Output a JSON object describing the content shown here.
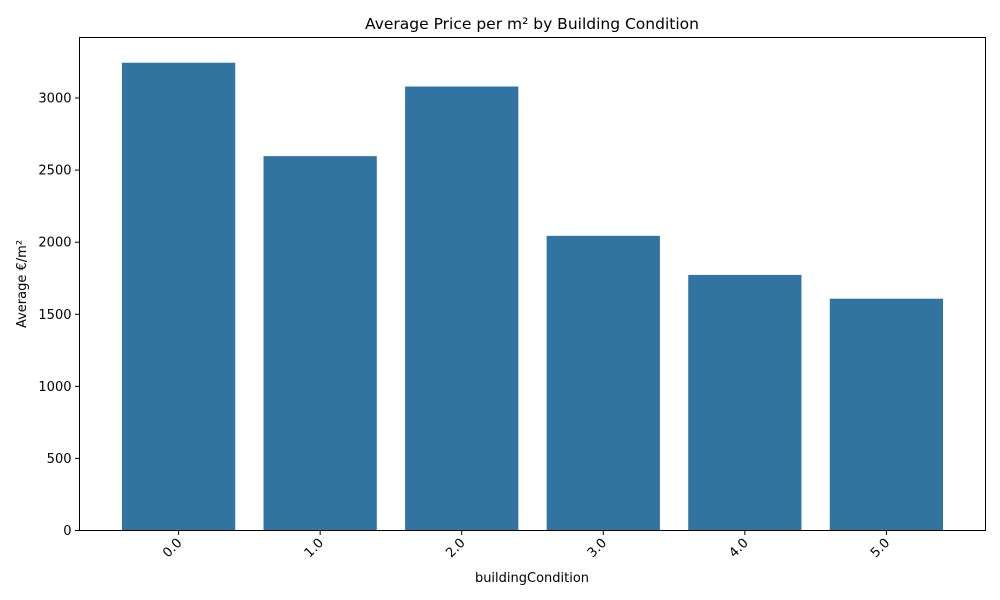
{
  "chart_data": {
    "type": "bar",
    "title": "Average Price per m² by Building Condition",
    "xlabel": "buildingCondition",
    "ylabel": "Average €/m²",
    "categories": [
      "0.0",
      "1.0",
      "2.0",
      "3.0",
      "4.0",
      "5.0"
    ],
    "values": [
      3245,
      2597,
      3080,
      2044,
      1773,
      1608
    ],
    "ylim": [
      0,
      3420
    ],
    "yticks": [
      "0",
      "500",
      "1000",
      "1500",
      "2000",
      "2500",
      "3000"
    ],
    "grid": false,
    "legend": "none",
    "bar_color": "#3274a1",
    "x_tick_rotation": "45"
  }
}
